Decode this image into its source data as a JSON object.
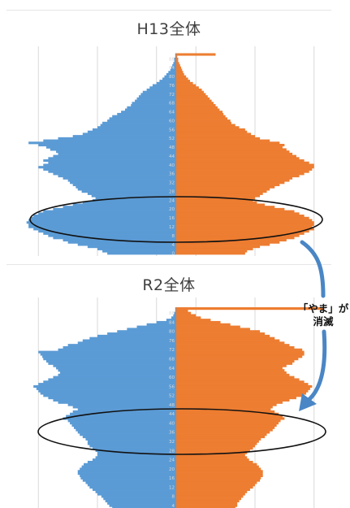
{
  "colors": {
    "male": "#5b9bd5",
    "female": "#ed7d31",
    "grid": "#d9d9d9",
    "axis_label": "#d9d9d9",
    "arrow": "#5b9bd5"
  },
  "annotation": {
    "line1": "「やま」が",
    "line2": "消滅"
  },
  "chart_data": [
    {
      "type": "bar",
      "title": "H13全体",
      "orientation": "horizontal-diverging",
      "grid": true,
      "age_labels": [
        "0",
        "4",
        "8",
        "12",
        "16",
        "20",
        "24",
        "28",
        "32",
        "36",
        "40",
        "44",
        "48",
        "52",
        "56",
        "60",
        "64",
        "68",
        "72",
        "76",
        "80",
        "84",
        "88"
      ],
      "ages": [
        0,
        1,
        2,
        3,
        4,
        5,
        6,
        7,
        8,
        9,
        10,
        11,
        12,
        13,
        14,
        15,
        16,
        17,
        18,
        19,
        20,
        21,
        22,
        23,
        24,
        25,
        26,
        27,
        28,
        29,
        30,
        31,
        32,
        33,
        34,
        35,
        36,
        37,
        38,
        39,
        40,
        41,
        42,
        43,
        44,
        45,
        46,
        47,
        48,
        49,
        50,
        51,
        52,
        53,
        54,
        55,
        56,
        57,
        58,
        59,
        60,
        61,
        62,
        63,
        64,
        65,
        66,
        67,
        68,
        69,
        70,
        71,
        72,
        73,
        74,
        75,
        76,
        77,
        78,
        79,
        80,
        81,
        82,
        83,
        84,
        85,
        86,
        87,
        88,
        89,
        90
      ],
      "series": [
        {
          "values": [
            -70,
            -75,
            -80,
            -90,
            -100,
            -110,
            -115,
            -125,
            -130,
            -135,
            -140,
            -145,
            -150,
            -150,
            -152,
            -150,
            -148,
            -145,
            -140,
            -135,
            -125,
            -115,
            -105,
            -95,
            -85,
            -82,
            -86,
            -90,
            -96,
            -100,
            -102,
            -105,
            -108,
            -110,
            -115,
            -120,
            -125,
            -130,
            -135,
            -140,
            -135,
            -130,
            -135,
            -130,
            -125,
            -120,
            -122,
            -128,
            -132,
            -140,
            -150,
            -135,
            -120,
            -105,
            -95,
            -90,
            -85,
            -80,
            -77,
            -75,
            -70,
            -68,
            -65,
            -60,
            -56,
            -52,
            -50,
            -46,
            -45,
            -42,
            -40,
            -38,
            -36,
            -34,
            -30,
            -27,
            -24,
            -20,
            -17,
            -14,
            -12,
            -10,
            -8,
            -6,
            -5,
            -4,
            -3,
            -2,
            -2,
            -1,
            -1
          ]
        },
        {
          "values": [
            70,
            72,
            78,
            85,
            95,
            105,
            112,
            120,
            125,
            130,
            135,
            140,
            138,
            140,
            140,
            138,
            135,
            130,
            125,
            120,
            110,
            100,
            90,
            82,
            78,
            80,
            85,
            88,
            92,
            95,
            100,
            105,
            110,
            115,
            118,
            125,
            130,
            135,
            138,
            140,
            140,
            135,
            130,
            125,
            122,
            118,
            115,
            112,
            108,
            110,
            105,
            95,
            85,
            80,
            76,
            72,
            70,
            64,
            60,
            56,
            55,
            52,
            50,
            48,
            47,
            44,
            42,
            40,
            38,
            36,
            34,
            32,
            30,
            28,
            26,
            23,
            20,
            17,
            14,
            12,
            10,
            8,
            7,
            6,
            5,
            4,
            3,
            2,
            2,
            1,
            40
          ]
        }
      ],
      "xlim": [
        -160,
        160
      ]
    },
    {
      "type": "bar",
      "title": "R2全体",
      "orientation": "horizontal-diverging",
      "grid": true,
      "age_labels": [
        "4",
        "8",
        "12",
        "16",
        "20",
        "24",
        "28",
        "32",
        "36",
        "40",
        "44",
        "48",
        "52",
        "56",
        "60",
        "64",
        "68",
        "72",
        "76",
        "80",
        "84",
        "88"
      ],
      "ages": [
        2,
        3,
        4,
        5,
        6,
        7,
        8,
        9,
        10,
        11,
        12,
        13,
        14,
        15,
        16,
        17,
        18,
        19,
        20,
        21,
        22,
        23,
        24,
        25,
        26,
        27,
        28,
        29,
        30,
        31,
        32,
        33,
        34,
        35,
        36,
        37,
        38,
        39,
        40,
        41,
        42,
        43,
        44,
        45,
        46,
        47,
        48,
        49,
        50,
        51,
        52,
        53,
        54,
        55,
        56,
        57,
        58,
        59,
        60,
        61,
        62,
        63,
        64,
        65,
        66,
        67,
        68,
        69,
        70,
        71,
        72,
        73,
        74,
        75,
        76,
        77,
        78,
        79,
        80,
        81,
        82,
        83,
        84,
        85,
        86,
        87,
        88,
        89,
        90
      ],
      "series": [
        {
          "values": [
            -62,
            -65,
            -68,
            -70,
            -72,
            -74,
            -76,
            -80,
            -82,
            -85,
            -88,
            -90,
            -92,
            -95,
            -97,
            -98,
            -100,
            -100,
            -98,
            -96,
            -94,
            -90,
            -85,
            -82,
            -80,
            -80,
            -82,
            -85,
            -88,
            -90,
            -90,
            -92,
            -95,
            -98,
            -100,
            -102,
            -104,
            -106,
            -108,
            -110,
            -115,
            -112,
            -108,
            -105,
            -100,
            -105,
            -110,
            -120,
            -125,
            -130,
            -135,
            -138,
            -140,
            -142,
            -145,
            -140,
            -135,
            -130,
            -125,
            -120,
            -118,
            -120,
            -122,
            -125,
            -130,
            -132,
            -135,
            -136,
            -138,
            -140,
            -120,
            -115,
            -110,
            -100,
            -95,
            -88,
            -80,
            -70,
            -60,
            -50,
            -40,
            -30,
            -20,
            -10,
            -5,
            -3,
            -2,
            -1,
            -1
          ]
        },
        {
          "values": [
            58,
            60,
            62,
            62,
            64,
            66,
            68,
            70,
            72,
            75,
            78,
            80,
            82,
            85,
            86,
            88,
            88,
            88,
            86,
            84,
            82,
            78,
            74,
            72,
            70,
            72,
            75,
            78,
            80,
            82,
            84,
            86,
            90,
            92,
            95,
            98,
            100,
            102,
            104,
            106,
            110,
            108,
            104,
            100,
            96,
            98,
            102,
            108,
            115,
            122,
            128,
            132,
            134,
            136,
            138,
            134,
            130,
            125,
            120,
            115,
            112,
            110,
            108,
            112,
            118,
            120,
            124,
            128,
            130,
            130,
            128,
            120,
            115,
            110,
            105,
            100,
            95,
            90,
            85,
            75,
            65,
            55,
            45,
            35,
            25,
            20,
            15,
            12,
            150
          ]
        }
      ],
      "xlim": [
        -160,
        160
      ]
    }
  ]
}
